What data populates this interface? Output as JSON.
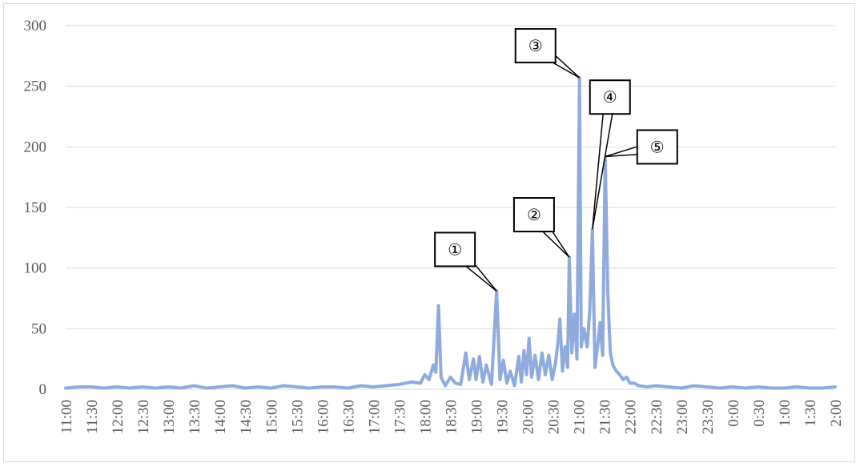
{
  "chart_data": {
    "type": "line",
    "title": "",
    "xlabel": "",
    "ylabel": "",
    "ylim": [
      0,
      300
    ],
    "yticks": [
      0,
      50,
      100,
      150,
      200,
      250,
      300
    ],
    "xlim": [
      "11:00",
      "2:00"
    ],
    "grid": true,
    "line_color": "#8faadc",
    "x_tick_labels": [
      "11:00",
      "11:30",
      "12:00",
      "12:30",
      "13:00",
      "13:30",
      "14:00",
      "14:30",
      "15:00",
      "15:30",
      "16:00",
      "16:30",
      "17:00",
      "17:30",
      "18:00",
      "18:30",
      "19:00",
      "19:30",
      "20:00",
      "20:30",
      "21:00",
      "21:30",
      "22:00",
      "22:30",
      "23:00",
      "23:30",
      "0:00",
      "0:30",
      "1:00",
      "1:30",
      "2:00"
    ],
    "series": [
      {
        "points": [
          [
            "11:00",
            1
          ],
          [
            "11:15",
            2
          ],
          [
            "11:30",
            2
          ],
          [
            "11:45",
            1
          ],
          [
            "12:00",
            2
          ],
          [
            "12:15",
            1
          ],
          [
            "12:30",
            2
          ],
          [
            "12:45",
            1
          ],
          [
            "13:00",
            2
          ],
          [
            "13:15",
            1
          ],
          [
            "13:30",
            3
          ],
          [
            "13:45",
            1
          ],
          [
            "14:00",
            2
          ],
          [
            "14:15",
            3
          ],
          [
            "14:30",
            1
          ],
          [
            "14:45",
            2
          ],
          [
            "15:00",
            1
          ],
          [
            "15:15",
            3
          ],
          [
            "15:30",
            2
          ],
          [
            "15:45",
            1
          ],
          [
            "16:00",
            2
          ],
          [
            "16:15",
            2
          ],
          [
            "16:30",
            1
          ],
          [
            "16:45",
            3
          ],
          [
            "17:00",
            2
          ],
          [
            "17:15",
            3
          ],
          [
            "17:30",
            4
          ],
          [
            "17:45",
            6
          ],
          [
            "17:55",
            5
          ],
          [
            "18:00",
            12
          ],
          [
            "18:05",
            8
          ],
          [
            "18:10",
            20
          ],
          [
            "18:13",
            14
          ],
          [
            "18:16",
            69
          ],
          [
            "18:19",
            10
          ],
          [
            "18:24",
            3
          ],
          [
            "18:30",
            10
          ],
          [
            "18:36",
            5
          ],
          [
            "18:42",
            4
          ],
          [
            "18:48",
            30
          ],
          [
            "18:52",
            8
          ],
          [
            "18:57",
            25
          ],
          [
            "19:00",
            8
          ],
          [
            "19:04",
            27
          ],
          [
            "19:08",
            6
          ],
          [
            "19:12",
            20
          ],
          [
            "19:18",
            4
          ],
          [
            "19:24",
            81
          ],
          [
            "19:28",
            8
          ],
          [
            "19:32",
            24
          ],
          [
            "19:36",
            5
          ],
          [
            "19:40",
            15
          ],
          [
            "19:45",
            3
          ],
          [
            "19:50",
            27
          ],
          [
            "19:53",
            6
          ],
          [
            "19:56",
            32
          ],
          [
            "19:59",
            12
          ],
          [
            "20:02",
            42
          ],
          [
            "20:05",
            10
          ],
          [
            "20:09",
            28
          ],
          [
            "20:13",
            8
          ],
          [
            "20:17",
            30
          ],
          [
            "20:21",
            12
          ],
          [
            "20:25",
            28
          ],
          [
            "20:29",
            8
          ],
          [
            "20:33",
            22
          ],
          [
            "20:36",
            40
          ],
          [
            "20:38",
            58
          ],
          [
            "20:41",
            15
          ],
          [
            "20:44",
            35
          ],
          [
            "20:47",
            18
          ],
          [
            "20:49",
            109
          ],
          [
            "20:52",
            30
          ],
          [
            "20:55",
            62
          ],
          [
            "20:58",
            25
          ],
          [
            "21:01",
            257
          ],
          [
            "21:03",
            35
          ],
          [
            "21:06",
            50
          ],
          [
            "21:10",
            35
          ],
          [
            "21:13",
            65
          ],
          [
            "21:16",
            132
          ],
          [
            "21:19",
            18
          ],
          [
            "21:22",
            35
          ],
          [
            "21:25",
            55
          ],
          [
            "21:28",
            28
          ],
          [
            "21:31",
            192
          ],
          [
            "21:34",
            80
          ],
          [
            "21:37",
            30
          ],
          [
            "21:40",
            20
          ],
          [
            "21:44",
            15
          ],
          [
            "21:48",
            12
          ],
          [
            "21:52",
            8
          ],
          [
            "21:56",
            10
          ],
          [
            "22:00",
            5
          ],
          [
            "22:05",
            5
          ],
          [
            "22:10",
            3
          ],
          [
            "22:20",
            2
          ],
          [
            "22:30",
            3
          ],
          [
            "22:45",
            2
          ],
          [
            "23:00",
            1
          ],
          [
            "23:15",
            3
          ],
          [
            "23:30",
            2
          ],
          [
            "23:45",
            1
          ],
          [
            "0:00",
            2
          ],
          [
            "0:15",
            1
          ],
          [
            "0:30",
            2
          ],
          [
            "0:45",
            1
          ],
          [
            "1:00",
            1
          ],
          [
            "1:15",
            2
          ],
          [
            "1:30",
            1
          ],
          [
            "1:45",
            1
          ],
          [
            "2:00",
            2
          ]
        ]
      }
    ],
    "annotations": [
      {
        "label": "①",
        "target": [
          "19:24",
          81
        ]
      },
      {
        "label": "②",
        "target": [
          "20:49",
          109
        ]
      },
      {
        "label": "③",
        "target": [
          "21:01",
          257
        ]
      },
      {
        "label": "④",
        "target": [
          "21:16",
          132
        ]
      },
      {
        "label": "⑤",
        "target": [
          "21:31",
          192
        ]
      }
    ]
  }
}
